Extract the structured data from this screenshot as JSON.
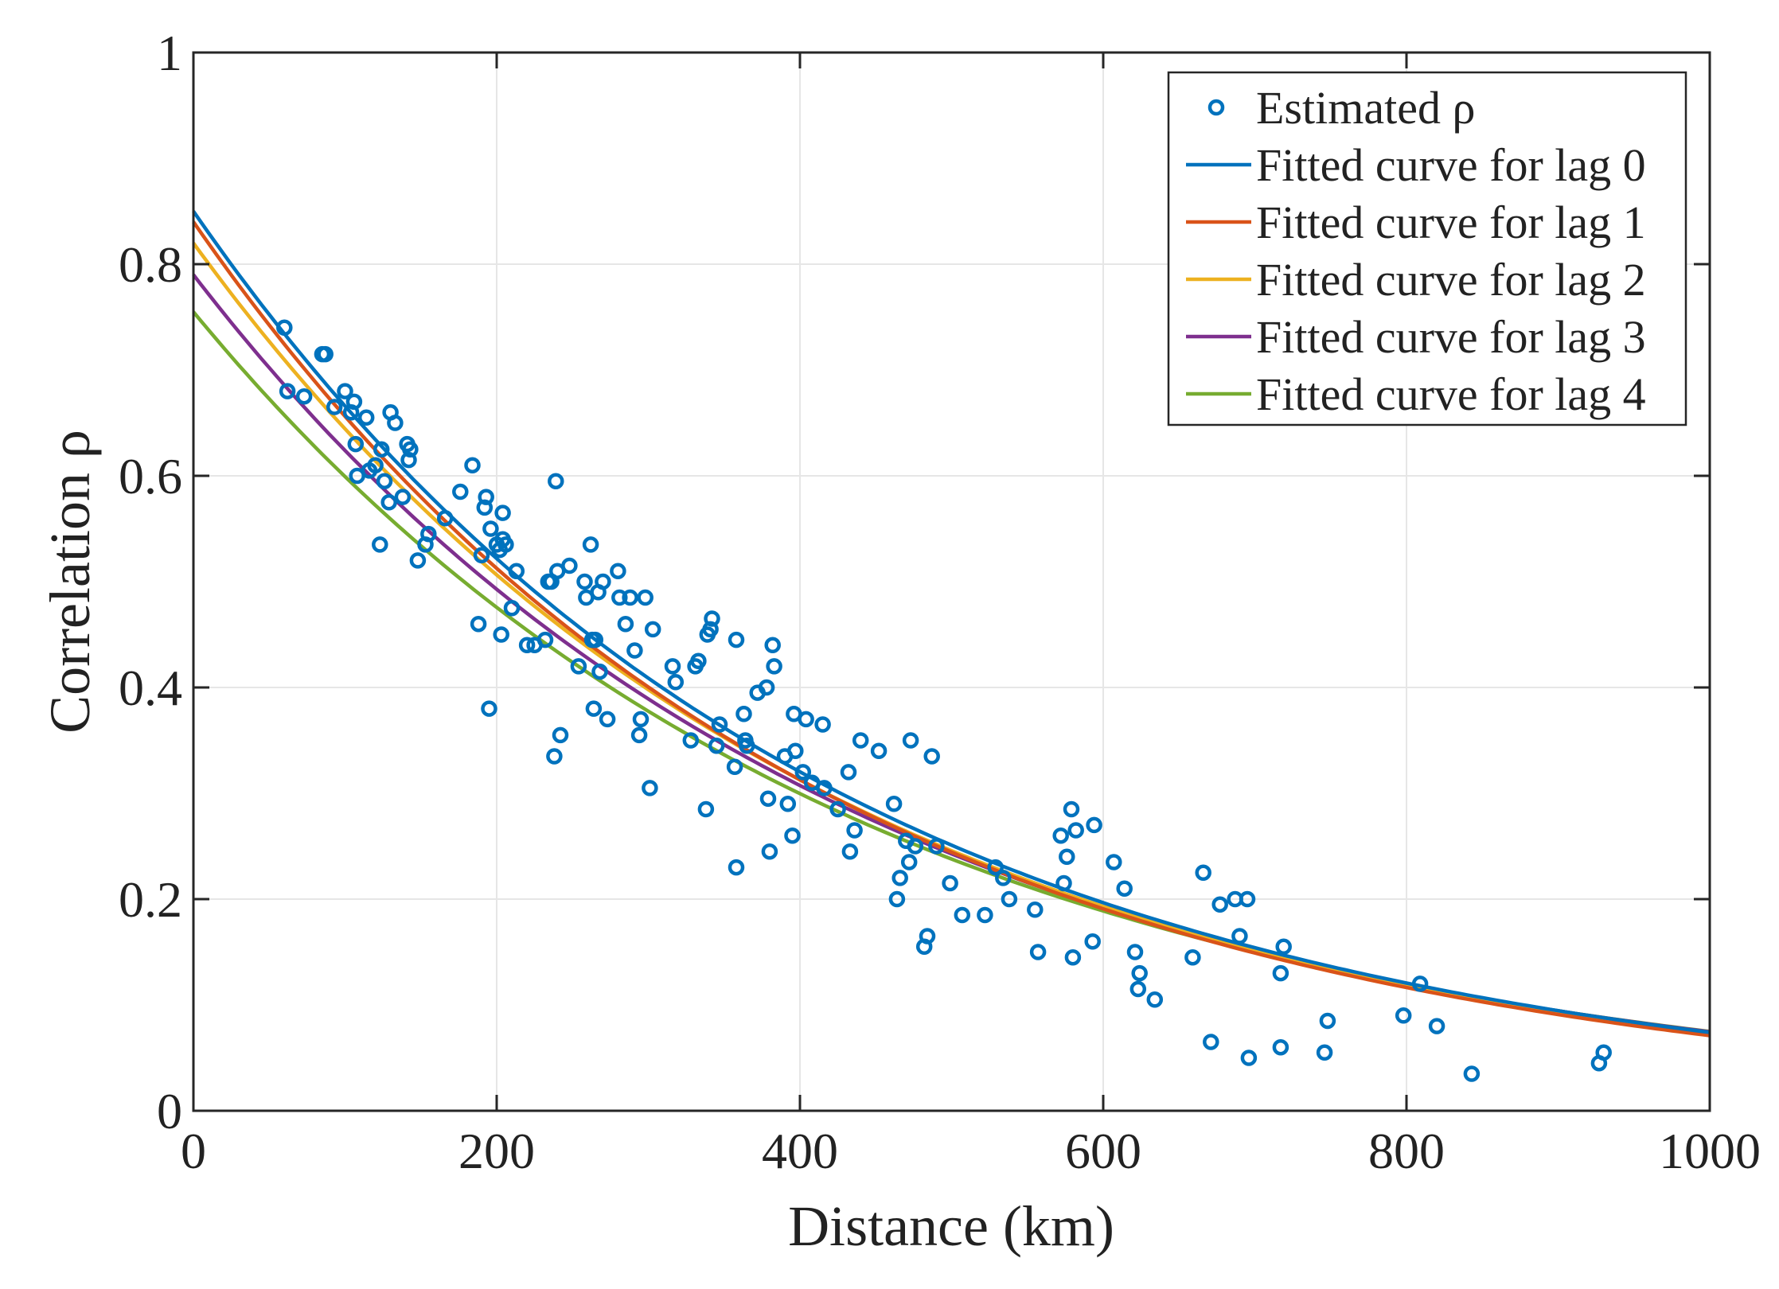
{
  "chart_data": {
    "type": "scatter",
    "title": "",
    "xlabel": "Distance (km)",
    "ylabel": "Correlation ρ",
    "xlim": [
      0,
      1000
    ],
    "ylim": [
      0,
      1
    ],
    "xticks": [
      0,
      200,
      400,
      600,
      800,
      1000
    ],
    "yticks": [
      0,
      0.2,
      0.4,
      0.6,
      0.8,
      1
    ],
    "xtick_labels": [
      "0",
      "200",
      "400",
      "600",
      "800",
      "1000"
    ],
    "ytick_labels": [
      "0",
      "0.2",
      "0.4",
      "0.6",
      "0.8",
      "1"
    ],
    "grid": true,
    "legend_position": "top-right",
    "scatter": {
      "name": "Estimated ρ",
      "color": "#0072BD",
      "points": [
        [
          60,
          0.74
        ],
        [
          62,
          0.68
        ],
        [
          73,
          0.675
        ],
        [
          85,
          0.715
        ],
        [
          87,
          0.715
        ],
        [
          93,
          0.665
        ],
        [
          100,
          0.68
        ],
        [
          104,
          0.66
        ],
        [
          106,
          0.67
        ],
        [
          107,
          0.63
        ],
        [
          108,
          0.6
        ],
        [
          114,
          0.655
        ],
        [
          116,
          0.605
        ],
        [
          120,
          0.61
        ],
        [
          123,
          0.535
        ],
        [
          124,
          0.625
        ],
        [
          126,
          0.595
        ],
        [
          129,
          0.575
        ],
        [
          130,
          0.66
        ],
        [
          133,
          0.65
        ],
        [
          138,
          0.58
        ],
        [
          141,
          0.63
        ],
        [
          142,
          0.615
        ],
        [
          143,
          0.625
        ],
        [
          148,
          0.52
        ],
        [
          153,
          0.535
        ],
        [
          155,
          0.545
        ],
        [
          166,
          0.56
        ],
        [
          176,
          0.585
        ],
        [
          184,
          0.61
        ],
        [
          188,
          0.46
        ],
        [
          190,
          0.525
        ],
        [
          192,
          0.57
        ],
        [
          193,
          0.58
        ],
        [
          195,
          0.38
        ],
        [
          196,
          0.55
        ],
        [
          200,
          0.535
        ],
        [
          202,
          0.53
        ],
        [
          203,
          0.45
        ],
        [
          204,
          0.54
        ],
        [
          204,
          0.565
        ],
        [
          206,
          0.535
        ],
        [
          210,
          0.475
        ],
        [
          213,
          0.51
        ],
        [
          220,
          0.44
        ],
        [
          225,
          0.44
        ],
        [
          232,
          0.445
        ],
        [
          234,
          0.5
        ],
        [
          236,
          0.5
        ],
        [
          238,
          0.335
        ],
        [
          239,
          0.595
        ],
        [
          240,
          0.51
        ],
        [
          242,
          0.355
        ],
        [
          248,
          0.515
        ],
        [
          254,
          0.42
        ],
        [
          258,
          0.5
        ],
        [
          259,
          0.485
        ],
        [
          262,
          0.535
        ],
        [
          263,
          0.445
        ],
        [
          264,
          0.38
        ],
        [
          265,
          0.445
        ],
        [
          267,
          0.49
        ],
        [
          268,
          0.415
        ],
        [
          270,
          0.5
        ],
        [
          273,
          0.37
        ],
        [
          280,
          0.51
        ],
        [
          281,
          0.485
        ],
        [
          285,
          0.46
        ],
        [
          288,
          0.485
        ],
        [
          291,
          0.435
        ],
        [
          294,
          0.355
        ],
        [
          295,
          0.37
        ],
        [
          298,
          0.485
        ],
        [
          301,
          0.305
        ],
        [
          303,
          0.455
        ],
        [
          316,
          0.42
        ],
        [
          318,
          0.405
        ],
        [
          328,
          0.35
        ],
        [
          331,
          0.42
        ],
        [
          333,
          0.425
        ],
        [
          338,
          0.285
        ],
        [
          339,
          0.45
        ],
        [
          341,
          0.455
        ],
        [
          342,
          0.465
        ],
        [
          345,
          0.345
        ],
        [
          347,
          0.365
        ],
        [
          357,
          0.325
        ],
        [
          358,
          0.23
        ],
        [
          358,
          0.445
        ],
        [
          363,
          0.375
        ],
        [
          364,
          0.35
        ],
        [
          365,
          0.345
        ],
        [
          372,
          0.395
        ],
        [
          378,
          0.4
        ],
        [
          379,
          0.295
        ],
        [
          380,
          0.245
        ],
        [
          382,
          0.44
        ],
        [
          383,
          0.42
        ],
        [
          390,
          0.335
        ],
        [
          392,
          0.29
        ],
        [
          395,
          0.26
        ],
        [
          396,
          0.375
        ],
        [
          397,
          0.34
        ],
        [
          402,
          0.32
        ],
        [
          404,
          0.37
        ],
        [
          408,
          0.31
        ],
        [
          415,
          0.365
        ],
        [
          416,
          0.305
        ],
        [
          425,
          0.285
        ],
        [
          432,
          0.32
        ],
        [
          433,
          0.245
        ],
        [
          436,
          0.265
        ],
        [
          440,
          0.35
        ],
        [
          452,
          0.34
        ],
        [
          462,
          0.29
        ],
        [
          464,
          0.2
        ],
        [
          466,
          0.22
        ],
        [
          470,
          0.255
        ],
        [
          472,
          0.235
        ],
        [
          473,
          0.35
        ],
        [
          476,
          0.25
        ],
        [
          482,
          0.155
        ],
        [
          484,
          0.165
        ],
        [
          487,
          0.335
        ],
        [
          490,
          0.25
        ],
        [
          499,
          0.215
        ],
        [
          507,
          0.185
        ],
        [
          522,
          0.185
        ],
        [
          529,
          0.23
        ],
        [
          534,
          0.22
        ],
        [
          538,
          0.2
        ],
        [
          555,
          0.19
        ],
        [
          557,
          0.15
        ],
        [
          572,
          0.26
        ],
        [
          574,
          0.215
        ],
        [
          576,
          0.24
        ],
        [
          579,
          0.285
        ],
        [
          580,
          0.145
        ],
        [
          582,
          0.265
        ],
        [
          593,
          0.16
        ],
        [
          594,
          0.27
        ],
        [
          607,
          0.235
        ],
        [
          614,
          0.21
        ],
        [
          621,
          0.15
        ],
        [
          623,
          0.115
        ],
        [
          624,
          0.13
        ],
        [
          634,
          0.105
        ],
        [
          659,
          0.145
        ],
        [
          666,
          0.225
        ],
        [
          671,
          0.065
        ],
        [
          677,
          0.195
        ],
        [
          687,
          0.2
        ],
        [
          690,
          0.165
        ],
        [
          695,
          0.2
        ],
        [
          696,
          0.05
        ],
        [
          717,
          0.06
        ],
        [
          717,
          0.13
        ],
        [
          719,
          0.155
        ],
        [
          746,
          0.055
        ],
        [
          748,
          0.085
        ],
        [
          798,
          0.09
        ],
        [
          809,
          0.12
        ],
        [
          820,
          0.08
        ],
        [
          843,
          0.035
        ],
        [
          927,
          0.045
        ],
        [
          930,
          0.055
        ]
      ]
    },
    "series": [
      {
        "name": "Fitted curve for lag 0",
        "color": "#0072BD",
        "a": 0.85,
        "b": 0.00244
      },
      {
        "name": "Fitted curve for lag 1",
        "color": "#D95319",
        "a": 0.84,
        "b": 0.00247
      },
      {
        "name": "Fitted curve for lag 2",
        "color": "#EDB120",
        "a": 0.82,
        "b": 0.00241
      },
      {
        "name": "Fitted curve for lag 3",
        "color": "#7E2F8E",
        "a": 0.79,
        "b": 0.00236
      },
      {
        "name": "Fitted curve for lag 4",
        "color": "#77AC30",
        "a": 0.755,
        "b": 0.00231
      }
    ]
  }
}
